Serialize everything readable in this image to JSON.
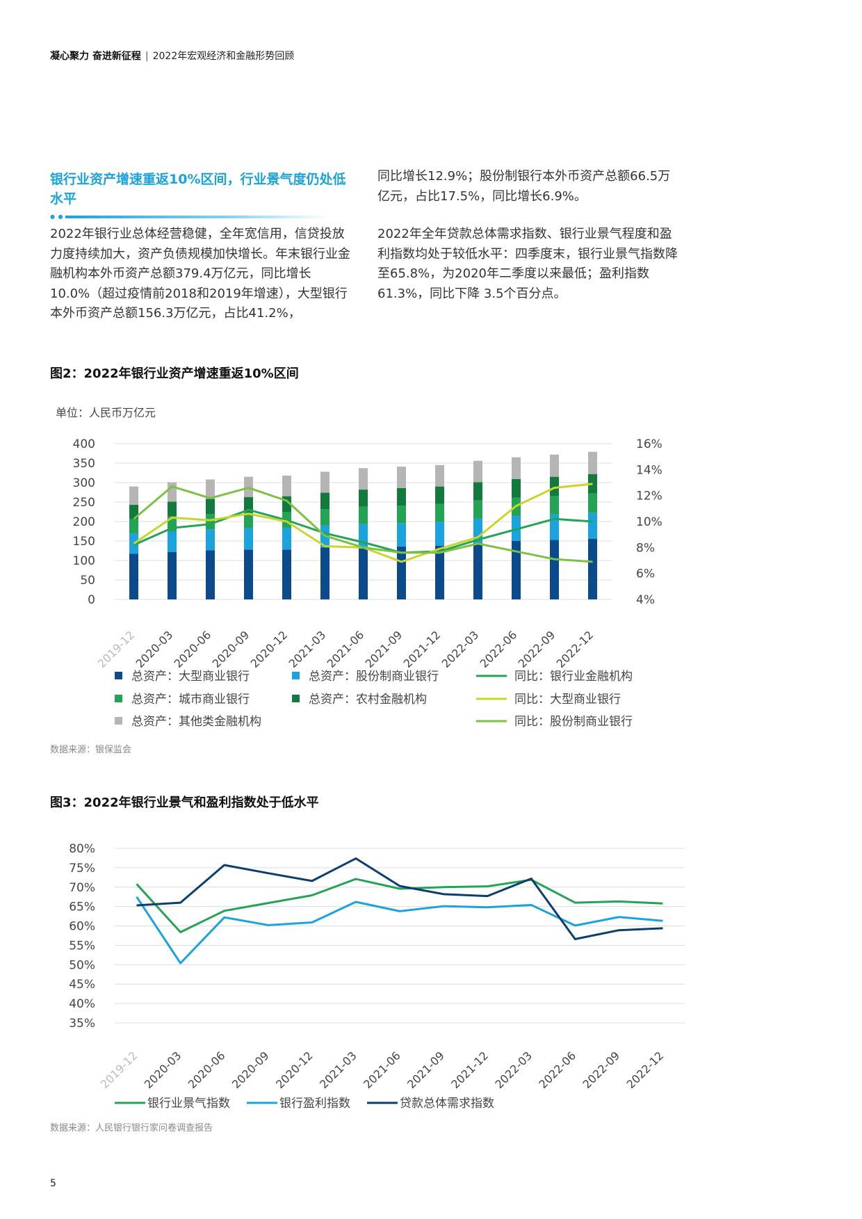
{
  "header": {
    "left": "凝心聚力 奋进新征程",
    "divider": "|",
    "right": "2022年宏观经济和金融形势回顾"
  },
  "section": {
    "title": "银行业资产增速重返10%区间，行业景气度仍处低水平"
  },
  "text": {
    "left_para": "2022年银行业总体经营稳健，全年宽信用，信贷投放力度持续加大，资产负债规模加快增长。年末银行业金融机构本外币资产总额379.4万亿元，同比增长10.0%（超过疫情前2018和2019年增速），大型银行本外币资产总额156.3万亿元，占比41.2%，",
    "right_para1": "同比增长12.9%；股份制银行本外币资产总额66.5万亿元，占比17.5%，同比增长6.9%。",
    "right_para2": "2022年全年贷款总体需求指数、银行业景气程度和盈利指数均处于较低水平：四季度末，银行业景气指数降至65.8%，为2020年二季度以来最低；盈利指数61.3%，同比下降 3.5个百分点。"
  },
  "figure2": {
    "title": "图2：2022年银行业资产增速重返10%区间",
    "unit": "单位：人民币万亿元",
    "source": "数据来源：银保监会"
  },
  "figure3": {
    "title": "图3：2022年银行业景气和盈利指数处于低水平",
    "source": "数据来源：人民银行银行家问卷调查报告"
  },
  "page_number": "5",
  "chart_data": [
    {
      "id": "fig2",
      "type": "bar",
      "stacked": true,
      "categories": [
        "2019-12",
        "2020-03",
        "2020-06",
        "2020-09",
        "2020-12",
        "2021-03",
        "2021-06",
        "2021-09",
        "2021-12",
        "2022-03",
        "2022-06",
        "2022-09",
        "2022-12"
      ],
      "y_left": {
        "ticks": [
          "0",
          "50",
          "100",
          "150",
          "200",
          "250",
          "300",
          "350",
          "400"
        ],
        "min": 0,
        "max": 400
      },
      "y_right": {
        "ticks": [
          "4%",
          "6%",
          "8%",
          "10%",
          "12%",
          "14%",
          "16%"
        ],
        "min": 4,
        "max": 16
      },
      "grid": true,
      "legend_position": "bottom",
      "series": [
        {
          "name": "总资产：大型商业银行",
          "kind": "bar",
          "axis": "left",
          "color": "#0b4a8b",
          "values": [
            117,
            122,
            126,
            128,
            128,
            133,
            135,
            136,
            138,
            145,
            150,
            153,
            156
          ]
        },
        {
          "name": "总资产：股份制商业银行",
          "kind": "bar",
          "axis": "left",
          "color": "#1aa3dc",
          "values": [
            52,
            53,
            54,
            55,
            56,
            57,
            59,
            60,
            62,
            63,
            64,
            65,
            66
          ]
        },
        {
          "name": "总资产：城市商业银行",
          "kind": "bar",
          "axis": "left",
          "color": "#23a455",
          "values": [
            37,
            38,
            39,
            40,
            41,
            42,
            44,
            45,
            45,
            46,
            47,
            48,
            50
          ]
        },
        {
          "name": "总资产：农村金融机构",
          "kind": "bar",
          "axis": "left",
          "color": "#127a3c",
          "values": [
            37,
            38,
            39,
            40,
            40,
            42,
            44,
            45,
            45,
            47,
            48,
            49,
            50
          ]
        },
        {
          "name": "总资产：其他类金融机构",
          "kind": "bar",
          "axis": "left",
          "color": "#b5b5b5",
          "values": [
            47,
            50,
            50,
            52,
            53,
            54,
            55,
            55,
            55,
            55,
            56,
            57,
            57
          ]
        },
        {
          "name": "同比：银行业金融机构",
          "kind": "line",
          "axis": "right",
          "color": "#23a455",
          "values": [
            8.2,
            9.5,
            9.8,
            10.9,
            10.1,
            9.1,
            8.4,
            7.6,
            7.7,
            8.6,
            9.4,
            10.2,
            10.0
          ]
        },
        {
          "name": "同比：大型商业银行",
          "kind": "line",
          "axis": "right",
          "color": "#c8d62b",
          "values": [
            8.3,
            10.3,
            10.1,
            10.6,
            10.0,
            8.1,
            8.0,
            6.9,
            7.9,
            8.8,
            11.2,
            12.6,
            12.9
          ]
        },
        {
          "name": "同比：股份制商业银行",
          "kind": "line",
          "axis": "right",
          "color": "#7cc142",
          "values": [
            10.2,
            12.7,
            11.8,
            12.6,
            11.6,
            8.9,
            8.0,
            7.6,
            7.6,
            8.3,
            7.7,
            7.1,
            6.9
          ]
        }
      ]
    },
    {
      "id": "fig3",
      "type": "line",
      "categories": [
        "2019-12",
        "2020-03",
        "2020-06",
        "2020-09",
        "2020-12",
        "2021-03",
        "2021-06",
        "2021-09",
        "2021-12",
        "2022-03",
        "2022-06",
        "2022-09",
        "2022-12"
      ],
      "y": {
        "ticks": [
          "35%",
          "40%",
          "45%",
          "50%",
          "55%",
          "60%",
          "65%",
          "70%",
          "75%",
          "80%"
        ],
        "min": 35,
        "max": 80
      },
      "grid": true,
      "legend_position": "bottom",
      "series": [
        {
          "name": "银行业景气指数",
          "color": "#23a455",
          "values": [
            70.8,
            58.4,
            63.9,
            65.9,
            67.9,
            72.1,
            69.6,
            70.0,
            70.2,
            71.9,
            66.0,
            66.3,
            65.8
          ]
        },
        {
          "name": "银行盈利指数",
          "color": "#1aa3dc",
          "values": [
            67.5,
            50.4,
            62.2,
            60.2,
            60.9,
            66.2,
            63.8,
            65.1,
            64.8,
            65.4,
            60.1,
            62.3,
            61.3
          ]
        },
        {
          "name": "贷款总体需求指数",
          "color": "#0b3e6e",
          "values": [
            65.3,
            66.0,
            75.7,
            73.6,
            71.6,
            77.4,
            70.3,
            68.2,
            67.7,
            72.2,
            56.6,
            58.9,
            59.4
          ]
        }
      ]
    }
  ]
}
